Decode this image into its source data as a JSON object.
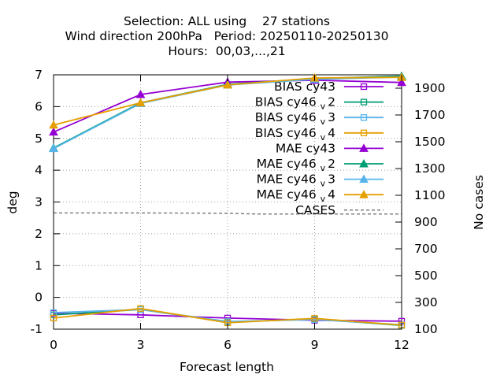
{
  "chart_data": {
    "type": "line",
    "title_lines": [
      "Selection: ALL using    27 stations",
      "Wind direction 200hPa   Period: 20250110-20250130",
      "Hours:  00,03,...,21"
    ],
    "xlabel": "Forecast length",
    "ylabel": "deg",
    "y2label": "No cases",
    "x": [
      0,
      3,
      6,
      9,
      12
    ],
    "xlim": [
      0,
      12
    ],
    "ylim": [
      -1,
      7
    ],
    "y2lim": [
      100,
      2000
    ],
    "xticks": [
      "0",
      "3",
      "6",
      "9",
      "12"
    ],
    "yticks": [
      "-1",
      "0",
      "1",
      "2",
      "3",
      "4",
      "5",
      "6",
      "7"
    ],
    "y2ticks": [
      "100",
      "300",
      "500",
      "700",
      "900",
      "1100",
      "1300",
      "1500",
      "1700",
      "1900"
    ],
    "grid": true,
    "legend_position": "top-right",
    "series": [
      {
        "name": "BIAS cy43",
        "base": "BIAS cy43",
        "sub": "",
        "tail": "",
        "color": "#9400d3",
        "marker": "square-open",
        "axis": "y",
        "values": [
          -0.5,
          -0.55,
          -0.65,
          -0.72,
          -0.75
        ]
      },
      {
        "name": "BIAS cy46_v2",
        "base": "BIAS cy46",
        "sub": "v",
        "tail": "2",
        "color": "#009e73",
        "marker": "square-open",
        "axis": "y",
        "values": [
          -0.55,
          -0.38,
          -0.78,
          -0.68,
          -0.88
        ]
      },
      {
        "name": "BIAS cy46_v3",
        "base": "BIAS cy46",
        "sub": "v",
        "tail": "3",
        "color": "#56b4e9",
        "marker": "square-open",
        "axis": "y",
        "values": [
          -0.48,
          -0.38,
          -0.76,
          -0.7,
          -0.86
        ]
      },
      {
        "name": "BIAS cy46_v4",
        "base": "BIAS cy46",
        "sub": "v",
        "tail": "4",
        "color": "#e69f00",
        "marker": "square-open",
        "axis": "y",
        "values": [
          -0.65,
          -0.35,
          -0.8,
          -0.66,
          -0.87
        ]
      },
      {
        "name": "MAE cy43",
        "base": "MAE cy43",
        "sub": "",
        "tail": "",
        "color": "#9400d3",
        "marker": "triangle",
        "axis": "y",
        "values": [
          5.2,
          6.38,
          6.77,
          6.83,
          6.76
        ]
      },
      {
        "name": "MAE cy46_v2",
        "base": "MAE cy46",
        "sub": "v",
        "tail": "2",
        "color": "#009e73",
        "marker": "triangle",
        "axis": "y",
        "values": [
          4.7,
          6.12,
          6.7,
          6.88,
          6.96
        ]
      },
      {
        "name": "MAE cy46_v3",
        "base": "MAE cy46",
        "sub": "v",
        "tail": "3",
        "color": "#56b4e9",
        "marker": "triangle",
        "axis": "y",
        "values": [
          4.68,
          6.1,
          6.68,
          6.86,
          6.93
        ]
      },
      {
        "name": "MAE cy46_v4",
        "base": "MAE cy46",
        "sub": "v",
        "tail": "4",
        "color": "#e69f00",
        "marker": "triangle",
        "axis": "y",
        "values": [
          5.42,
          6.12,
          6.68,
          6.9,
          6.92
        ]
      },
      {
        "name": "CASES",
        "base": "CASES",
        "sub": "",
        "tail": "",
        "color": "#808080",
        "marker": "none",
        "dash": true,
        "axis": "y2",
        "x": [
          0,
          3,
          6,
          7,
          9,
          12
        ],
        "values": [
          968,
          968,
          966,
          960,
          960,
          960
        ]
      }
    ]
  }
}
